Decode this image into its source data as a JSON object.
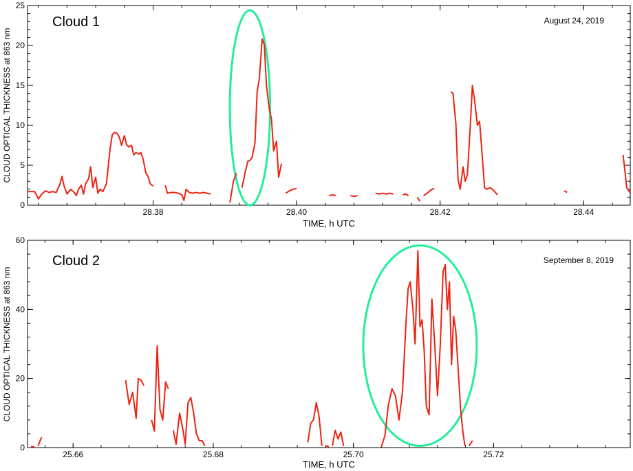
{
  "chart_data": [
    {
      "type": "line",
      "title": "Cloud 1",
      "date": "August 24, 2019",
      "xlabel": "TIME, h UTC",
      "ylabel": "CLOUD OPTICAL THICKNESS at 863 nm",
      "xlim": [
        28.3625,
        28.4465
      ],
      "ylim": [
        0,
        25
      ],
      "xticks": [
        28.38,
        28.4,
        28.42,
        28.44
      ],
      "xtick_labels": [
        "28.38",
        "28.40",
        "28.42",
        "28.44"
      ],
      "yticks": [
        0,
        5,
        10,
        15,
        20,
        25
      ],
      "ytick_labels": [
        "0",
        "5",
        "10",
        "15",
        "20",
        "25"
      ],
      "series_color": "#ee2211",
      "highlight_color": "#22ee99",
      "highlight_ellipse": {
        "cx": 28.3935,
        "cy": 12.2,
        "rx": 0.0028,
        "ry": 12.2
      },
      "segments": [
        [
          [
            28.3625,
            1.7
          ],
          [
            28.3635,
            1.7
          ],
          [
            28.364,
            0.8
          ],
          [
            28.3645,
            1.4
          ],
          [
            28.365,
            1.8
          ],
          [
            28.3655,
            1.6
          ],
          [
            28.366,
            1.7
          ],
          [
            28.3665,
            1.6
          ],
          [
            28.367,
            2.6
          ],
          [
            28.3673,
            3.6
          ],
          [
            28.3676,
            2.4
          ],
          [
            28.368,
            1.4
          ],
          [
            28.3685,
            2.0
          ],
          [
            28.369,
            1.6
          ],
          [
            28.3693,
            1.2
          ],
          [
            28.3696,
            2.0
          ],
          [
            28.37,
            2.5
          ],
          [
            28.3703,
            1.4
          ],
          [
            28.3706,
            2.7
          ],
          [
            28.371,
            3.3
          ],
          [
            28.3713,
            4.8
          ],
          [
            28.3716,
            2.2
          ],
          [
            28.372,
            3.5
          ],
          [
            28.3723,
            1.5
          ],
          [
            28.3726,
            2.0
          ],
          [
            28.373,
            1.7
          ],
          [
            28.3735,
            2.7
          ],
          [
            28.374,
            7.0
          ],
          [
            28.3743,
            8.8
          ],
          [
            28.3746,
            9.1
          ],
          [
            28.375,
            9.0
          ],
          [
            28.3753,
            8.5
          ],
          [
            28.3756,
            7.5
          ],
          [
            28.376,
            8.7
          ],
          [
            28.3763,
            7.6
          ],
          [
            28.3766,
            7.3
          ],
          [
            28.377,
            7.5
          ],
          [
            28.3773,
            6.3
          ],
          [
            28.3776,
            6.6
          ],
          [
            28.378,
            6.4
          ],
          [
            28.3783,
            6.6
          ],
          [
            28.3786,
            5.8
          ],
          [
            28.379,
            4.0
          ],
          [
            28.3793,
            3.6
          ],
          [
            28.3796,
            2.7
          ],
          [
            28.38,
            2.4
          ]
        ],
        [
          [
            28.3817,
            2.5
          ],
          [
            28.382,
            1.5
          ],
          [
            28.3825,
            1.6
          ],
          [
            28.383,
            1.6
          ],
          [
            28.3835,
            1.5
          ],
          [
            28.384,
            1.3
          ],
          [
            28.3843,
            0.6
          ],
          [
            28.3846,
            2.0
          ],
          [
            28.385,
            1.6
          ],
          [
            28.3855,
            1.5
          ],
          [
            28.386,
            1.6
          ],
          [
            28.3865,
            1.5
          ],
          [
            28.387,
            1.6
          ],
          [
            28.3875,
            1.5
          ],
          [
            28.388,
            1.4
          ]
        ],
        [
          [
            28.3907,
            0.3
          ],
          [
            28.3912,
            3.0
          ],
          [
            28.3916,
            4.0
          ]
        ],
        [
          [
            28.3924,
            2.2
          ],
          [
            28.3928,
            4.0
          ],
          [
            28.3932,
            5.5
          ],
          [
            28.3935,
            5.6
          ],
          [
            28.3938,
            6.0
          ],
          [
            28.3942,
            7.8
          ],
          [
            28.3945,
            14.2
          ],
          [
            28.3948,
            15.8
          ],
          [
            28.3952,
            20.8
          ],
          [
            28.3955,
            20.1
          ],
          [
            28.3958,
            15.0
          ],
          [
            28.3962,
            12.0
          ],
          [
            28.3965,
            10.8
          ],
          [
            28.3968,
            6.8
          ],
          [
            28.3972,
            8.0
          ],
          [
            28.3975,
            3.5
          ],
          [
            28.3979,
            5.2
          ]
        ],
        [
          [
            28.3985,
            1.5
          ],
          [
            28.399,
            1.8
          ],
          [
            28.3995,
            2.0
          ],
          [
            28.4,
            2.1
          ]
        ],
        [
          [
            28.4045,
            1.2
          ],
          [
            28.405,
            1.3
          ],
          [
            28.4055,
            1.2
          ]
        ],
        [
          [
            28.4075,
            1.2
          ],
          [
            28.408,
            1.1
          ],
          [
            28.4085,
            1.2
          ]
        ],
        [
          [
            28.411,
            1.5
          ],
          [
            28.4115,
            1.4
          ],
          [
            28.412,
            1.5
          ],
          [
            28.4125,
            1.4
          ],
          [
            28.413,
            1.5
          ],
          [
            28.4135,
            1.4
          ]
        ],
        [
          [
            28.4148,
            1.3
          ],
          [
            28.4152,
            1.4
          ],
          [
            28.4156,
            1.2
          ]
        ],
        [
          [
            28.4168,
            1.0
          ],
          [
            28.4172,
            0.5
          ]
        ],
        [
          [
            28.4177,
            1.2
          ],
          [
            28.4182,
            1.5
          ],
          [
            28.4187,
            1.9
          ],
          [
            28.4192,
            2.1
          ]
        ],
        [
          [
            28.4215,
            14.2
          ],
          [
            28.4218,
            14.0
          ],
          [
            28.4222,
            10.2
          ],
          [
            28.4225,
            3.2
          ],
          [
            28.4228,
            2.0
          ],
          [
            28.4232,
            4.8
          ],
          [
            28.4235,
            3.0
          ],
          [
            28.4238,
            3.8
          ],
          [
            28.4242,
            9.8
          ],
          [
            28.4245,
            15.0
          ],
          [
            28.4248,
            13.2
          ],
          [
            28.4252,
            10.0
          ],
          [
            28.4255,
            10.5
          ],
          [
            28.4258,
            7.0
          ],
          [
            28.4262,
            2.2
          ],
          [
            28.4265,
            2.0
          ],
          [
            28.427,
            2.2
          ],
          [
            28.4275,
            1.8
          ],
          [
            28.428,
            1.3
          ]
        ],
        [
          [
            28.4373,
            1.8
          ],
          [
            28.4377,
            1.6
          ]
        ],
        [
          [
            28.4455,
            6.3
          ],
          [
            28.4458,
            4.0
          ],
          [
            28.446,
            2.2
          ],
          [
            28.4463,
            1.8
          ],
          [
            28.4465,
            1.5
          ]
        ]
      ]
    },
    {
      "type": "line",
      "title": "Cloud 2",
      "date": "September 8, 2019",
      "xlabel": "TIME, h UTC",
      "ylabel": "CLOUD OPTICAL THICKNESS at 863 nm",
      "xlim": [
        25.6535,
        25.7395
      ],
      "ylim": [
        0,
        60
      ],
      "xticks": [
        25.66,
        25.68,
        25.7,
        25.72
      ],
      "xtick_labels": [
        "25.66",
        "25.68",
        "25.70",
        "25.72"
      ],
      "yticks": [
        0,
        20,
        40,
        60
      ],
      "ytick_labels": [
        "0",
        "20",
        "40",
        "60"
      ],
      "series_color": "#ee2211",
      "highlight_color": "#22ee99",
      "highlight_ellipse": {
        "cx": 25.7095,
        "cy": 29.5,
        "rx": 0.0081,
        "ry": 29.0
      },
      "segments": [
        [
          [
            25.654,
            0.3
          ],
          [
            25.6545,
            0.2
          ]
        ],
        [
          [
            25.655,
            0.5
          ],
          [
            25.6555,
            3.0
          ]
        ],
        [
          [
            25.6675,
            19.5
          ],
          [
            25.668,
            12.5
          ],
          [
            25.6685,
            16.0
          ],
          [
            25.669,
            8.5
          ],
          [
            25.6693,
            20.0
          ],
          [
            25.6697,
            19.5
          ],
          [
            25.6701,
            18.0
          ]
        ],
        [
          [
            25.6712,
            8.0
          ],
          [
            25.6716,
            4.8
          ],
          [
            25.672,
            29.5
          ],
          [
            25.6724,
            11.0
          ],
          [
            25.6728,
            8.0
          ],
          [
            25.6732,
            19.0
          ],
          [
            25.6736,
            17.0
          ]
        ],
        [
          [
            25.6743,
            5.0
          ],
          [
            25.6747,
            1.0
          ],
          [
            25.6752,
            10.0
          ],
          [
            25.6756,
            6.0
          ],
          [
            25.676,
            1.0
          ],
          [
            25.6764,
            13.0
          ],
          [
            25.6768,
            14.5
          ],
          [
            25.6772,
            10.0
          ],
          [
            25.6776,
            4.0
          ],
          [
            25.678,
            2.0
          ],
          [
            25.6784,
            2.0
          ],
          [
            25.6788,
            0.5
          ]
        ],
        [
          [
            25.6935,
            1.5
          ],
          [
            25.6939,
            7.0
          ],
          [
            25.6943,
            8.0
          ],
          [
            25.6947,
            13.0
          ],
          [
            25.6951,
            9.0
          ],
          [
            25.6955,
            0.5
          ]
        ],
        [
          [
            25.696,
            0.5
          ],
          [
            25.6965,
            0.3
          ]
        ],
        [
          [
            25.697,
            0.5
          ],
          [
            25.6974,
            5.0
          ],
          [
            25.6978,
            2.5
          ],
          [
            25.6982,
            4.5
          ],
          [
            25.6986,
            0.5
          ]
        ],
        [
          [
            25.704,
            0.3
          ],
          [
            25.7045,
            3.5
          ],
          [
            25.705,
            12.5
          ],
          [
            25.7055,
            17.0
          ],
          [
            25.706,
            15.0
          ],
          [
            25.7065,
            8.0
          ],
          [
            25.707,
            16.0
          ],
          [
            25.7075,
            36.0
          ],
          [
            25.7078,
            46.0
          ],
          [
            25.7081,
            48.0
          ],
          [
            25.7085,
            40.0
          ],
          [
            25.7088,
            30.0
          ],
          [
            25.7092,
            57.0
          ],
          [
            25.7095,
            35.0
          ],
          [
            25.7098,
            37.0
          ],
          [
            25.7101,
            28.0
          ],
          [
            25.7104,
            12.0
          ],
          [
            25.7108,
            9.5
          ],
          [
            25.7112,
            43.0
          ],
          [
            25.7116,
            30.0
          ],
          [
            25.712,
            15.0
          ],
          [
            25.7124,
            30.0
          ],
          [
            25.7128,
            51.0
          ],
          [
            25.7131,
            53.0
          ],
          [
            25.7134,
            40.0
          ],
          [
            25.7137,
            48.0
          ],
          [
            25.714,
            24.0
          ],
          [
            25.7143,
            38.0
          ],
          [
            25.7146,
            34.0
          ],
          [
            25.715,
            21.0
          ],
          [
            25.7153,
            11.0
          ],
          [
            25.7156,
            5.0
          ],
          [
            25.7159,
            0.5
          ]
        ],
        [
          [
            25.7165,
            0.5
          ],
          [
            25.717,
            2.0
          ]
        ]
      ]
    }
  ]
}
